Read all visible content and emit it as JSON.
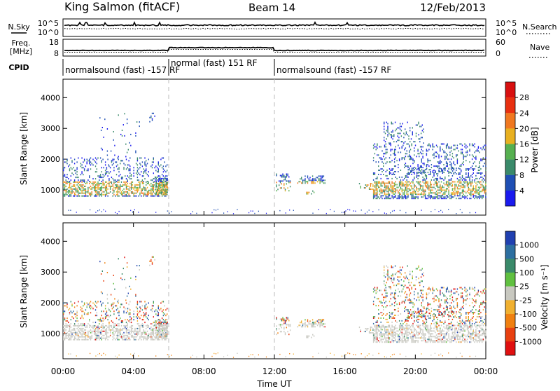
{
  "header": {
    "station": "King Salmon (fitACF)",
    "beam": "Beam 14",
    "date": "12/Feb/2013"
  },
  "colors": {
    "axis": "#000000",
    "ground_scatter": "#c8c8c0",
    "separator": "#bbbbbb"
  },
  "chart_data": [
    {
      "type": "line",
      "name": "noise-panel",
      "left_labels": [
        "N.Sky"
      ],
      "right_label_lines": [
        "N.Search"
      ],
      "left_ticks": [
        "10^5",
        "10^0"
      ],
      "right_ticks": [
        "10^5",
        "10^0"
      ],
      "xlim": [
        0,
        24
      ]
    },
    {
      "type": "line",
      "name": "frequency-panel",
      "left_label_lines": [
        "Freq.",
        "[MHz]"
      ],
      "right_label_lines": [
        "Nave"
      ],
      "left_ticks": [
        18,
        8
      ],
      "right_ticks": [
        60,
        0
      ],
      "xlim": [
        0,
        24
      ]
    },
    {
      "type": "table",
      "name": "cpid-panel",
      "label": "CPID",
      "segments": [
        {
          "start": 0,
          "end": 6,
          "text": "normalsound (fast) -157 RF"
        },
        {
          "start": 6,
          "end": 12,
          "text": "normal (fast) 151 RF"
        },
        {
          "start": 12,
          "end": 24,
          "text": "normalsound (fast) -157 RF"
        }
      ]
    },
    {
      "type": "heatmap",
      "name": "power-panel",
      "ylabel": "Slant Range [km]",
      "xlim": [
        0,
        24
      ],
      "ylim": [
        180,
        4600
      ],
      "yticks": [
        1000,
        2000,
        3000,
        4000
      ],
      "colorbar": {
        "label": "Power [dB]",
        "ticks": [
          "4",
          "8",
          "12",
          "16",
          "20",
          "24",
          "28"
        ],
        "colors": [
          "#1a1aee",
          "#1f4fb4",
          "#3a8a6a",
          "#56b050",
          "#e8b020",
          "#f07820",
          "#e83010",
          "#d81010"
        ]
      }
    },
    {
      "type": "heatmap",
      "name": "velocity-panel",
      "ylabel": "Slant Range [km]",
      "xlim": [
        0,
        24
      ],
      "ylim": [
        180,
        4600
      ],
      "yticks": [
        1000,
        2000,
        3000,
        4000
      ],
      "colorbar": {
        "label": "Velocity [m s⁻¹]",
        "ticks": [
          "1000",
          "500",
          "100",
          "25",
          "-25",
          "-100",
          "-500",
          "-1000"
        ],
        "colors": [
          "#2040b0",
          "#2d6fa0",
          "#3a8a6a",
          "#60c040",
          "#c8c8c0",
          "#f0b030",
          "#f08010",
          "#e84010",
          "#e01010"
        ]
      }
    }
  ],
  "xaxis": {
    "ticks": [
      "00:00",
      "04:00",
      "08:00",
      "12:00",
      "16:00",
      "20:00",
      "00:00"
    ],
    "label": "Time UT"
  }
}
